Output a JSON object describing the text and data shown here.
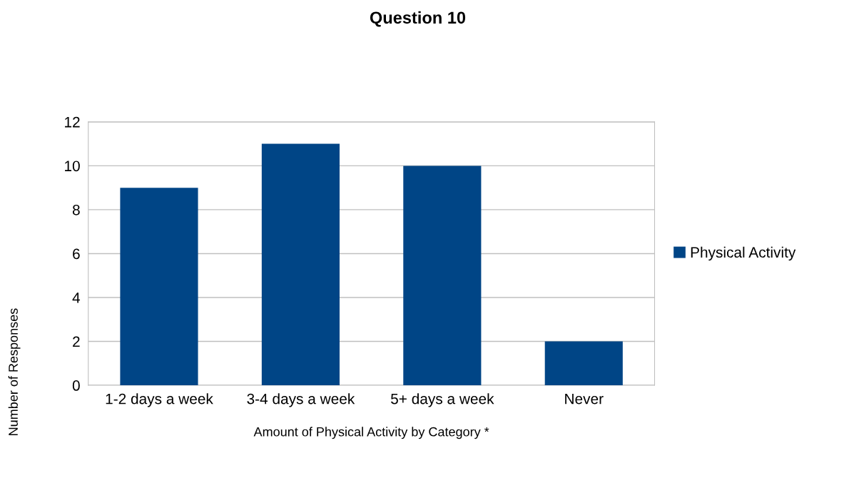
{
  "chart_data": {
    "type": "bar",
    "title": "Question 10",
    "xlabel": "Amount of Physical Activity by Category *",
    "ylabel": "Number of Responses",
    "categories": [
      "1-2 days a week",
      "3-4 days a week",
      "5+ days a week",
      "Never"
    ],
    "series": [
      {
        "name": "Physical Activity",
        "color": "#004586",
        "values": [
          9,
          11,
          10,
          2
        ]
      }
    ],
    "ylim": [
      0,
      12
    ],
    "yticks": [
      0,
      2,
      4,
      6,
      8,
      10,
      12
    ],
    "grid": "y",
    "legend": "right"
  }
}
